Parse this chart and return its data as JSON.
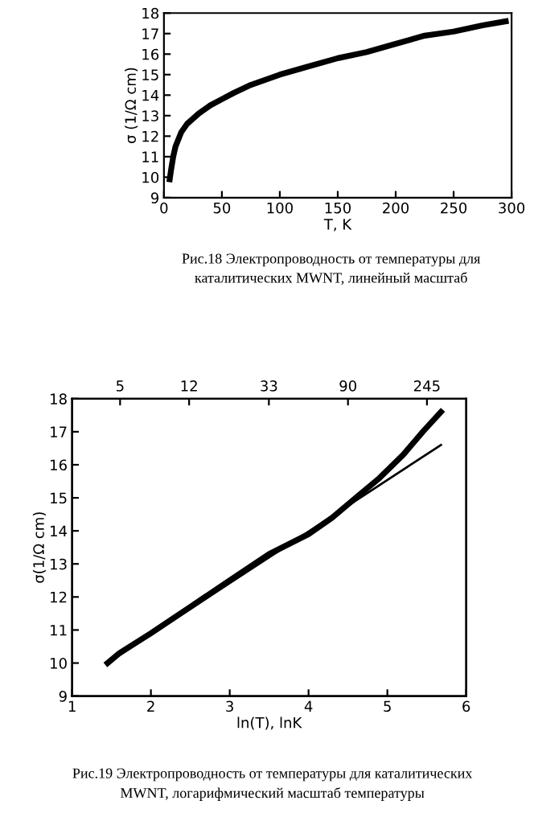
{
  "chart_data": [
    {
      "type": "line",
      "xlabel": "T, K",
      "ylabel": "σ (1/Ω cm)",
      "xlim": [
        0,
        300
      ],
      "xticks": [
        0,
        50,
        100,
        150,
        200,
        250,
        300
      ],
      "ylim": [
        9,
        18
      ],
      "yticks": [
        9,
        10,
        11,
        12,
        13,
        14,
        15,
        16,
        17,
        18
      ],
      "grid": false,
      "legend": false,
      "series": [
        {
          "color": "#000000",
          "x": [
            5,
            6,
            8,
            10,
            15,
            20,
            30,
            40,
            50,
            60,
            75,
            100,
            125,
            150,
            175,
            200,
            225,
            250,
            275,
            295
          ],
          "values": [
            9.9,
            10.3,
            11,
            11.5,
            12.2,
            12.6,
            13.1,
            13.5,
            13.8,
            14.1,
            14.5,
            15.0,
            15.4,
            15.8,
            16.1,
            16.5,
            16.9,
            17.1,
            17.4,
            17.6
          ]
        }
      ],
      "annotations": [
        "Рис.18 Электропроводность от температуры для\nкаталитических MWNT, линейный масштаб"
      ]
    },
    {
      "type": "line",
      "xlabel": "ln(T), lnK",
      "ylabel": "σ(1/Ω cm)",
      "xlim": [
        1,
        6
      ],
      "xticks": [
        1,
        2,
        3,
        4,
        5,
        6
      ],
      "ylim": [
        9,
        18
      ],
      "yticks": [
        9,
        10,
        11,
        12,
        13,
        14,
        15,
        16,
        17,
        18
      ],
      "x2lim": [
        2.72,
        403
      ],
      "x2ticks": [
        5,
        12,
        33,
        90,
        245
      ],
      "log": "x2",
      "grid": false,
      "legend": false,
      "series": [
        {
          "color": "#000000",
          "x": [
            1.45,
            1.6,
            2,
            2.5,
            3,
            3.5,
            4,
            4.3,
            4.6,
            4.9,
            5.2,
            5.45,
            5.68
          ],
          "values": [
            10.0,
            10.3,
            10.9,
            11.7,
            12.5,
            13.3,
            13.9,
            14.4,
            15.0,
            15.6,
            16.3,
            17.0,
            17.6
          ]
        },
        {
          "color": "#000000",
          "x": [
            1.45,
            5.68
          ],
          "values": [
            10.0,
            16.6
          ]
        }
      ],
      "annotations": [
        "Рис.19 Электропроводность от температуры для каталитических\nMWNT, логарифмический масштаб температуры"
      ]
    }
  ]
}
